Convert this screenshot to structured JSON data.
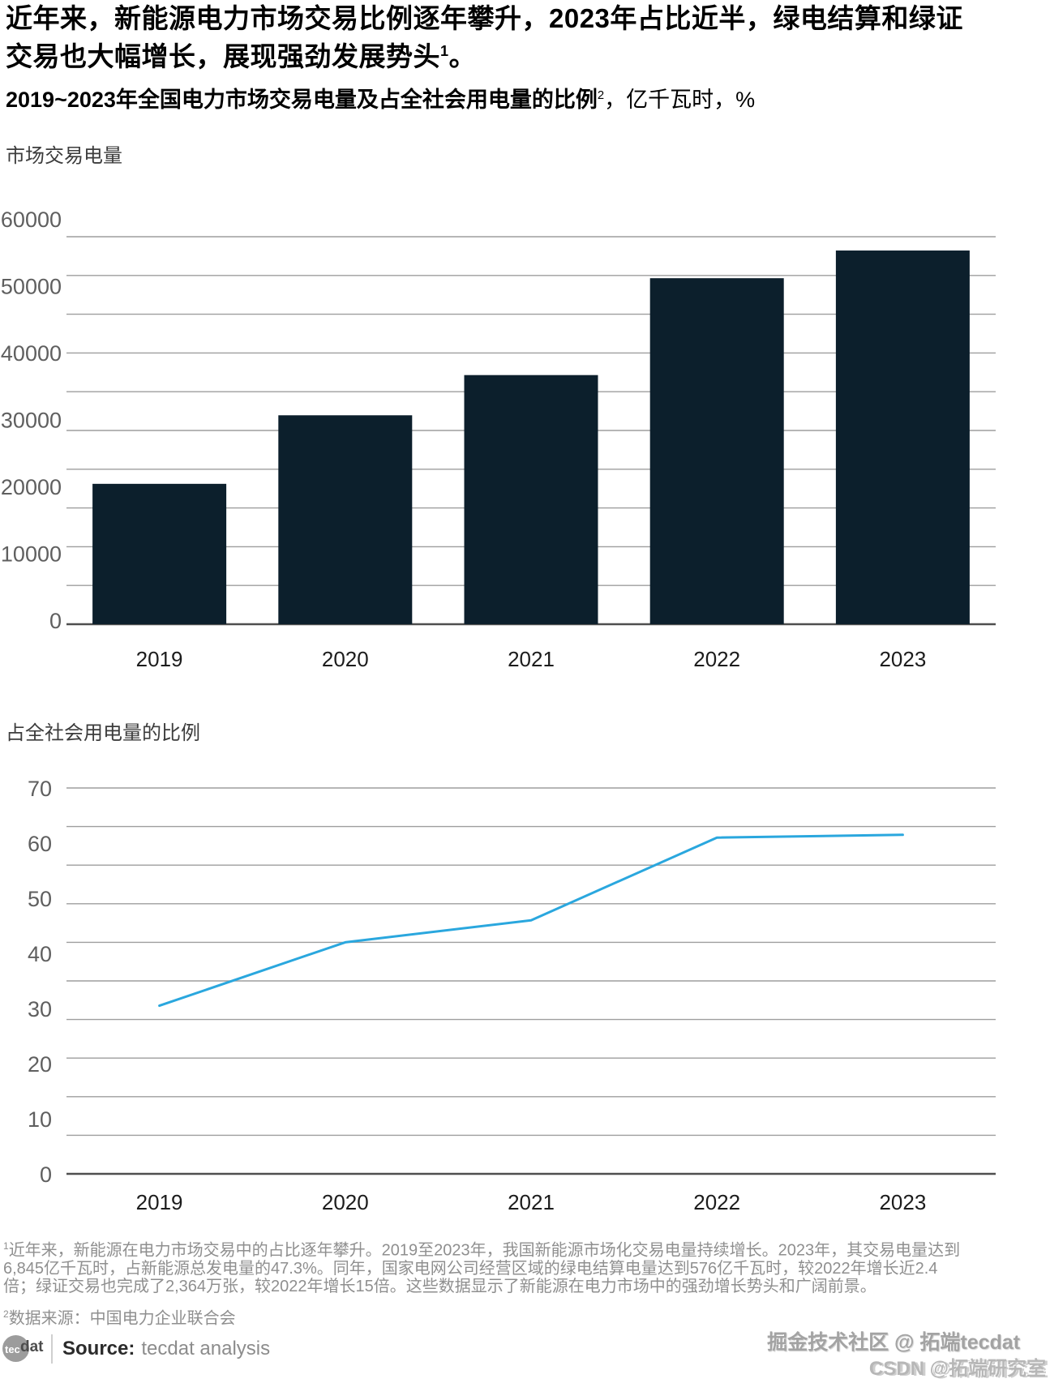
{
  "header": {
    "title_text": "近年来，新能源电力市场交易比例逐年攀升，2023年占比近半，绿电结算和绿证交易也大幅增长，展现强劲发展势头",
    "title_sup": "1",
    "title_tail": "。",
    "subtitle_bold": "2019~2023年全国电力市场交易电量及占全社会用电量的比例",
    "subtitle_sup": "2",
    "subtitle_rest": "，亿千瓦时，%"
  },
  "chart_data": [
    {
      "type": "bar",
      "title": "市场交易电量",
      "unit": "亿千瓦时",
      "categories": [
        "2019",
        "2020",
        "2021",
        "2022",
        "2023"
      ],
      "values": [
        21300,
        31700,
        37800,
        52500,
        56700
      ],
      "ylim": [
        0,
        60000
      ],
      "yticks": [
        60000,
        50000,
        40000,
        30000,
        20000,
        10000,
        0
      ],
      "xlabel": "",
      "ylabel": "市场交易电量",
      "grid": true,
      "legend": "none",
      "bar_color": "#0c1f2c",
      "grid_color": "#9e9e9e",
      "axis_color": "#4f4f4f",
      "tick_color": "#5f5f5f",
      "category_color": "#1c1c1c"
    },
    {
      "type": "line",
      "title": "占全社会用电量的比例",
      "unit": "%",
      "categories": [
        "2019",
        "2020",
        "2021",
        "2022",
        "2023"
      ],
      "values": [
        30.5,
        42,
        46,
        61,
        61.5
      ],
      "ylim": [
        0,
        70
      ],
      "yticks": [
        70,
        60,
        50,
        40,
        30,
        20,
        10,
        0
      ],
      "xlabel": "",
      "ylabel": "占全社会用电量的比例",
      "grid": true,
      "legend": "none",
      "line_color": "#2aa7de",
      "grid_color": "#9e9e9e",
      "axis_color": "#4f4f4f",
      "tick_color": "#5f5f5f",
      "category_color": "#1c1c1c"
    }
  ],
  "footnotes": [
    {
      "sup": "1",
      "text": "近年来，新能源在电力市场交易中的占比逐年攀升。2019至2023年，我国新能源市场化交易电量持续增长。2023年，其交易电量达到6,845亿千瓦时，占新能源总发电量的47.3%。同年，国家电网公司经营区域的绿电结算电量达到576亿千瓦时，较2022年增长近2.4倍；绿证交易也完成了2,364万张，较2022年增长15倍。这些数据显示了新能源在电力市场中的强劲增长势头和广阔前景。"
    },
    {
      "sup": "2",
      "text": "数据来源：中国电力企业联合会"
    }
  ],
  "source": {
    "logo_tec": "tec",
    "logo_dat": "dat",
    "label": "Source:",
    "value": "tecdat analysis"
  },
  "watermarks": {
    "wm1": "掘金技术社区 @ 拓端tecdat",
    "wm2": "CSDN @拓端研究室"
  }
}
